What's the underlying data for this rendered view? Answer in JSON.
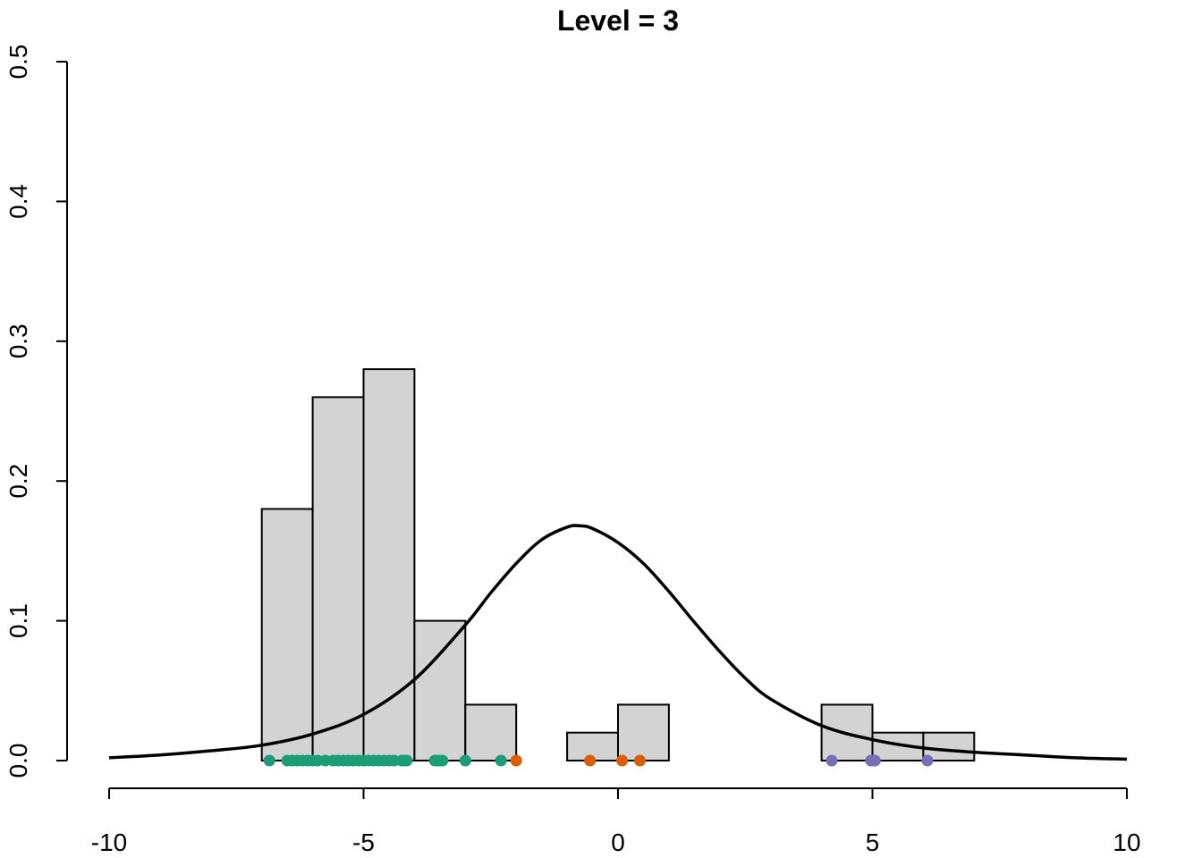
{
  "chart_data": {
    "type": "histogram",
    "title": "Level = 3",
    "xlabel": "",
    "ylabel": "",
    "xlim": [
      -10,
      10
    ],
    "ylim": [
      0,
      0.5
    ],
    "x_ticks": [
      -10,
      -5,
      0,
      5,
      10
    ],
    "x_tick_labels": [
      "-10",
      "-5",
      "0",
      "5",
      "10"
    ],
    "y_ticks": [
      0,
      0.1,
      0.2,
      0.3,
      0.4,
      0.5
    ],
    "y_tick_labels": [
      "0.0",
      "0.1",
      "0.2",
      "0.3",
      "0.4",
      "0.5"
    ],
    "grid": false,
    "bars": [
      {
        "x0": -7,
        "x1": -6,
        "value": 0.18
      },
      {
        "x0": -6,
        "x1": -5,
        "value": 0.26
      },
      {
        "x0": -5,
        "x1": -4,
        "value": 0.28
      },
      {
        "x0": -4,
        "x1": -3,
        "value": 0.1
      },
      {
        "x0": -3,
        "x1": -2,
        "value": 0.04
      },
      {
        "x0": -1,
        "x1": 0,
        "value": 0.02
      },
      {
        "x0": 0,
        "x1": 1,
        "value": 0.04
      },
      {
        "x0": 4,
        "x1": 5,
        "value": 0.04
      },
      {
        "x0": 5,
        "x1": 6,
        "value": 0.02
      },
      {
        "x0": 6,
        "x1": 7,
        "value": 0.02
      }
    ],
    "density_curve": {
      "x": [
        -10,
        -9,
        -8,
        -7,
        -6,
        -5,
        -4,
        -3,
        -2.5,
        -2,
        -1.5,
        -1,
        -0.75,
        -0.5,
        0,
        0.5,
        1,
        1.5,
        2,
        2.5,
        3,
        4,
        5,
        6,
        7,
        8,
        9,
        10
      ],
      "y": [
        0.002,
        0.004,
        0.007,
        0.011,
        0.019,
        0.033,
        0.058,
        0.097,
        0.12,
        0.141,
        0.158,
        0.167,
        0.168,
        0.166,
        0.156,
        0.141,
        0.121,
        0.099,
        0.078,
        0.059,
        0.044,
        0.025,
        0.015,
        0.009,
        0.006,
        0.004,
        0.002,
        0.001
      ]
    },
    "point_series": [
      {
        "color": "#1b9e77",
        "x": [
          -6.85,
          -6.5,
          -6.4,
          -6.3,
          -6.2,
          -6.1,
          -6.0,
          -5.9,
          -5.75,
          -5.6,
          -5.5,
          -5.4,
          -5.3,
          -5.2,
          -5.1,
          -5.0,
          -4.9,
          -4.8,
          -4.7,
          -4.6,
          -4.5,
          -4.4,
          -4.25,
          -4.2,
          -4.15,
          -3.6,
          -3.55,
          -3.5,
          -3.45,
          -3.0,
          -2.3
        ]
      },
      {
        "color": "#d95f02",
        "x": [
          -2.0,
          -0.55,
          0.08,
          0.43
        ]
      },
      {
        "color": "#7570b3",
        "x": [
          4.2,
          4.97,
          5.02,
          5.05,
          6.08
        ]
      }
    ]
  }
}
